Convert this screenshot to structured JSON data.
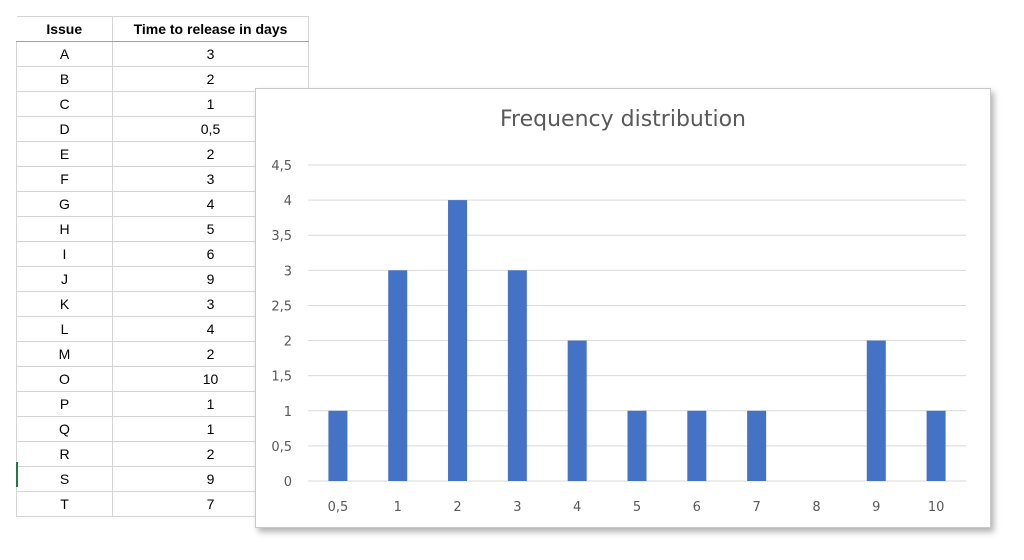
{
  "table": {
    "headers": [
      "Issue",
      "Time to release in days"
    ],
    "rows": [
      [
        "A",
        "3"
      ],
      [
        "B",
        "2"
      ],
      [
        "C",
        "1"
      ],
      [
        "D",
        "0,5"
      ],
      [
        "E",
        "2"
      ],
      [
        "F",
        "3"
      ],
      [
        "G",
        "4"
      ],
      [
        "H",
        "5"
      ],
      [
        "I",
        "6"
      ],
      [
        "J",
        "9"
      ],
      [
        "K",
        "3"
      ],
      [
        "L",
        "4"
      ],
      [
        "M",
        "2"
      ],
      [
        "O",
        "10"
      ],
      [
        "P",
        "1"
      ],
      [
        "Q",
        "1"
      ],
      [
        "R",
        "2"
      ],
      [
        "S",
        "9"
      ],
      [
        "T",
        "7"
      ]
    ]
  },
  "chart_data": {
    "type": "bar",
    "title": "Frequency distribution",
    "categories": [
      "0,5",
      "1",
      "2",
      "3",
      "4",
      "5",
      "6",
      "7",
      "8",
      "9",
      "10"
    ],
    "values": [
      1,
      3,
      4,
      3,
      2,
      1,
      1,
      1,
      0,
      2,
      1
    ],
    "yticks": [
      "0",
      "0,5",
      "1",
      "1,5",
      "2",
      "2,5",
      "3",
      "3,5",
      "4",
      "4,5"
    ],
    "ylim": [
      0,
      4.5
    ],
    "grid": true,
    "legend": "none",
    "bar_color": "#4472c4",
    "gridline_color": "#d9d9d9",
    "axis_label_color": "#595959"
  }
}
